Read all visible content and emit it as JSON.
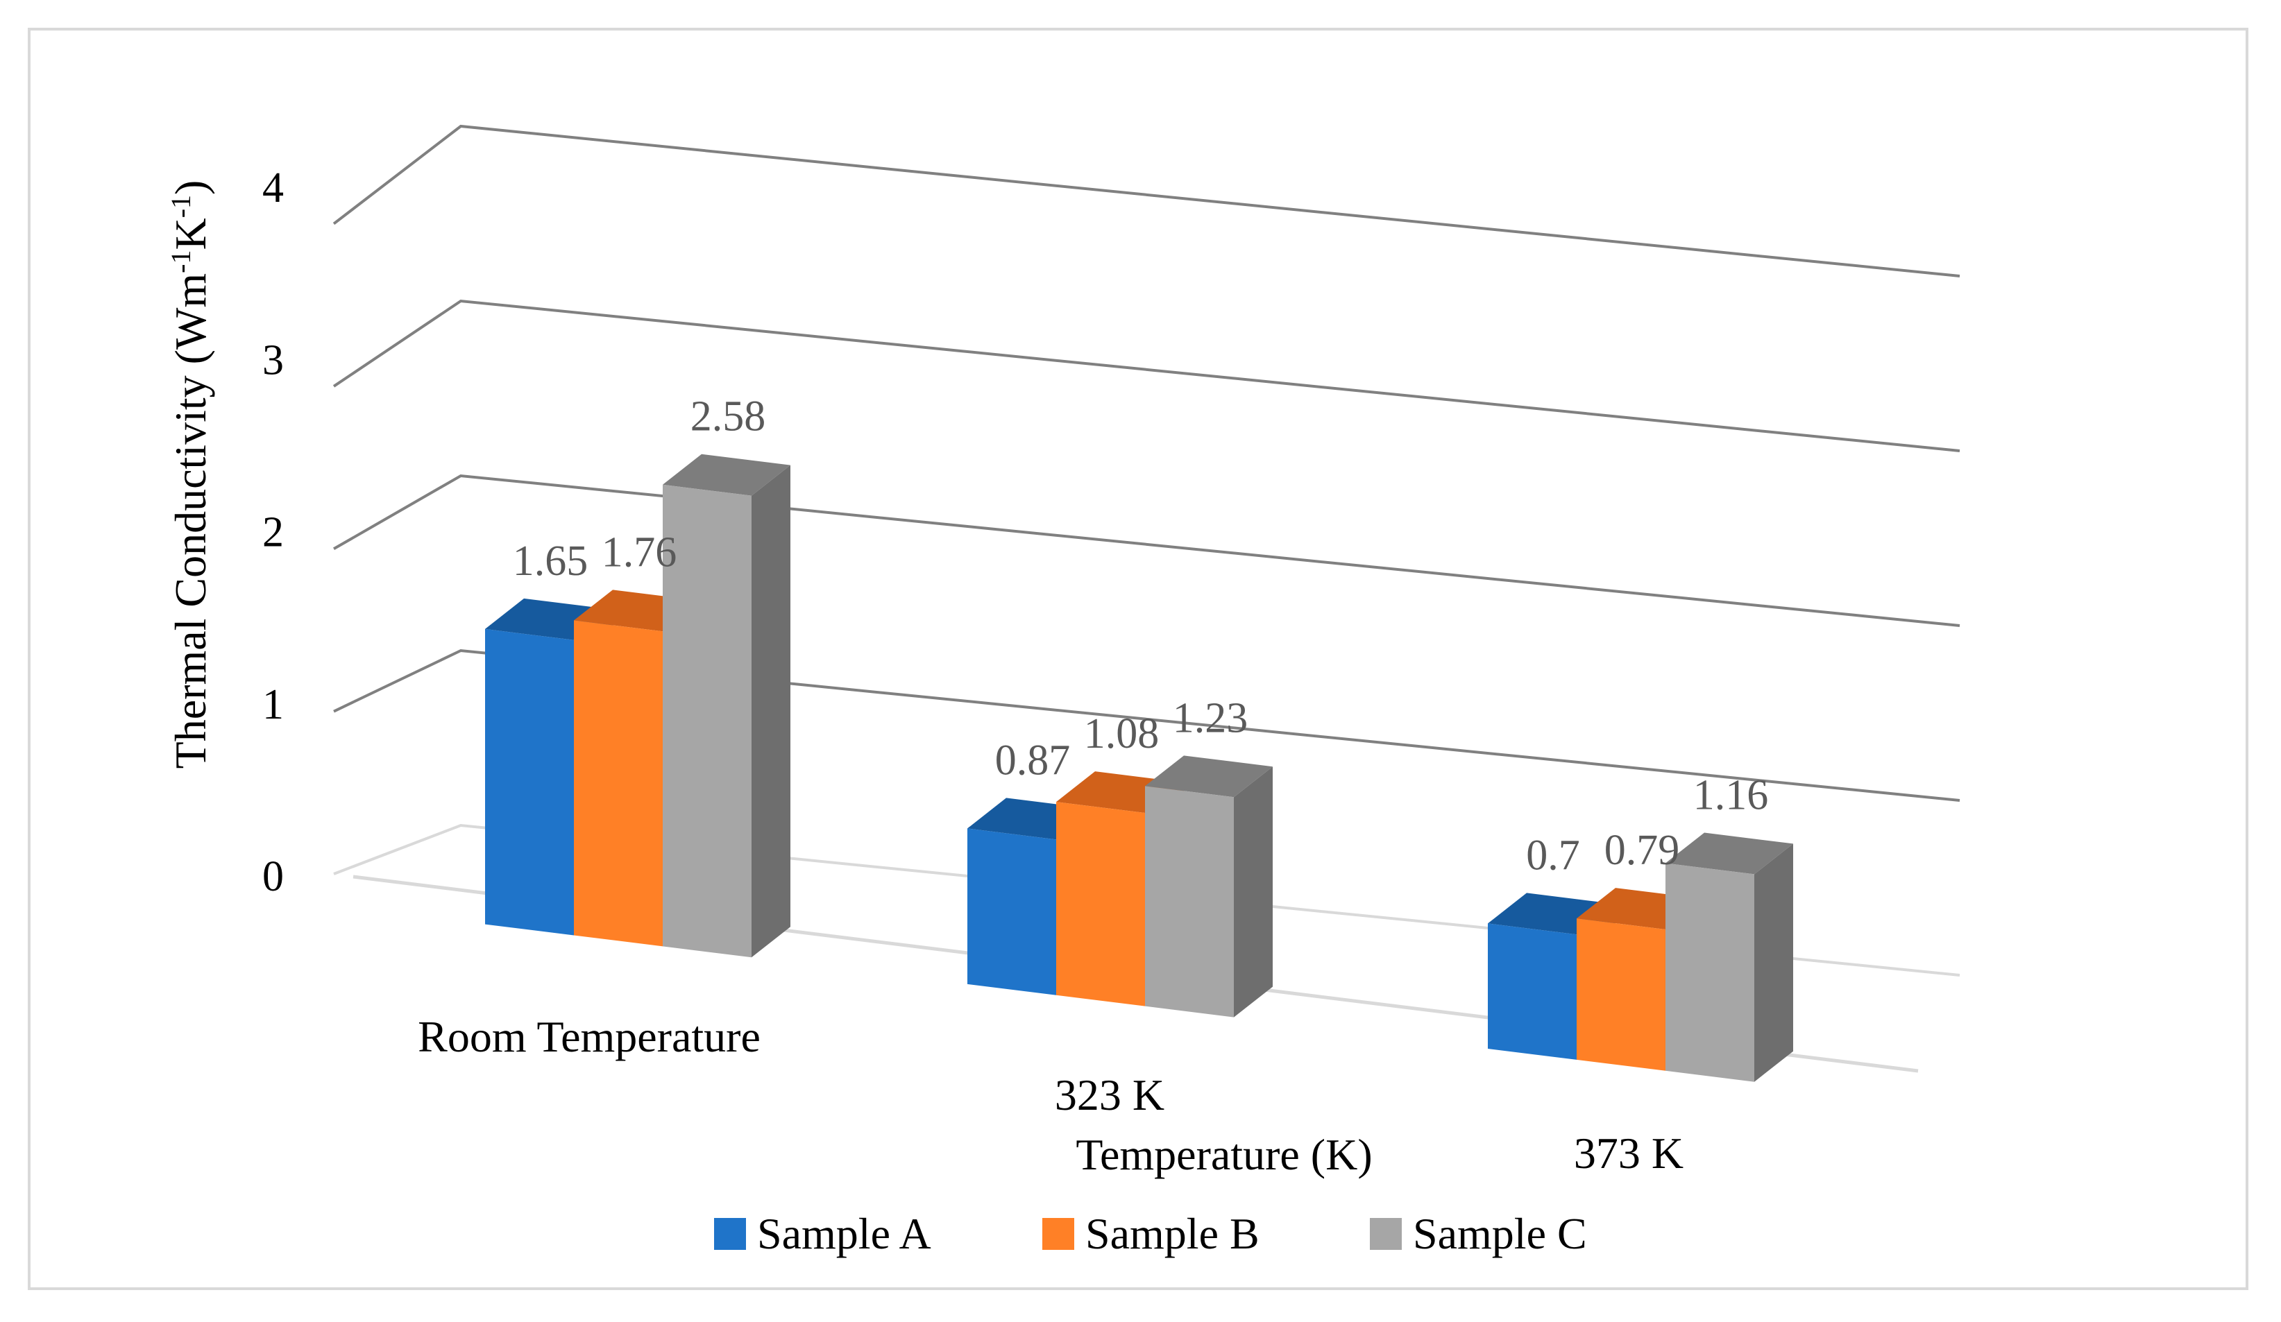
{
  "chart_data": {
    "type": "bar",
    "style": "3d-clustered-column",
    "categories": [
      "Room Temperature",
      "323 K",
      "373 K"
    ],
    "series": [
      {
        "name": "Sample A",
        "values": [
          1.65,
          0.87,
          0.7
        ],
        "labels": [
          "1.65",
          "0.87",
          "0.7"
        ],
        "color": "#1F74C9",
        "top_color": "#165A9E",
        "side_color": "#0E4A85"
      },
      {
        "name": "Sample B",
        "values": [
          1.76,
          1.08,
          0.79
        ],
        "labels": [
          "1.76",
          "1.08",
          "0.79"
        ],
        "color": "#FF8026",
        "top_color": "#D1611A",
        "side_color": "#B5520F"
      },
      {
        "name": "Sample C",
        "values": [
          2.58,
          1.23,
          1.16
        ],
        "labels": [
          "2.58",
          "1.23",
          "1.16"
        ],
        "color": "#A6A6A6",
        "top_color": "#7D7D7D",
        "side_color": "#6E6E6E"
      }
    ],
    "title": "",
    "xlabel": "Temperature (K)",
    "ylabel_main": "Thermal Conductivity (Wm",
    "ylabel_sup1": "-1",
    "ylabel_mid": "K",
    "ylabel_sup2": "-1",
    "ylabel_end": ")",
    "ylim": [
      0,
      4
    ],
    "yticks": [
      0,
      1,
      2,
      3,
      4
    ],
    "ytick_labels": [
      "0",
      "1",
      "2",
      "3",
      "4"
    ],
    "grid": true,
    "legend": "bottom",
    "colors": {
      "gridline": "#808080",
      "floor": "#d9d9d9",
      "label": "#595959",
      "text": "#000000",
      "border": "#d9d9d9"
    }
  }
}
